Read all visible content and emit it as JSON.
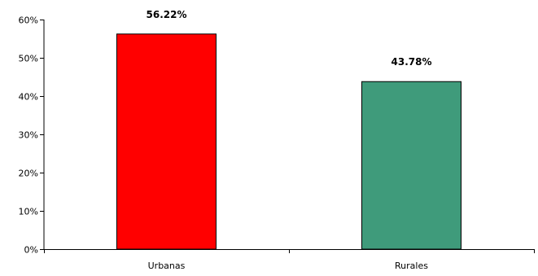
{
  "chart_data": {
    "type": "bar",
    "categories": [
      "Urbanas",
      "Rurales"
    ],
    "values": [
      56.22,
      43.78
    ],
    "data_labels": [
      "56.22%",
      "43.78%"
    ],
    "colors": [
      "#ff0000",
      "#3f9b7b"
    ],
    "ylim": [
      0,
      60
    ],
    "yticks": [
      0,
      10,
      20,
      30,
      40,
      50,
      60
    ],
    "ytick_labels": [
      "0%",
      "10%",
      "20%",
      "30%",
      "40%",
      "50%",
      "60%"
    ],
    "grid": false,
    "legend": false
  }
}
